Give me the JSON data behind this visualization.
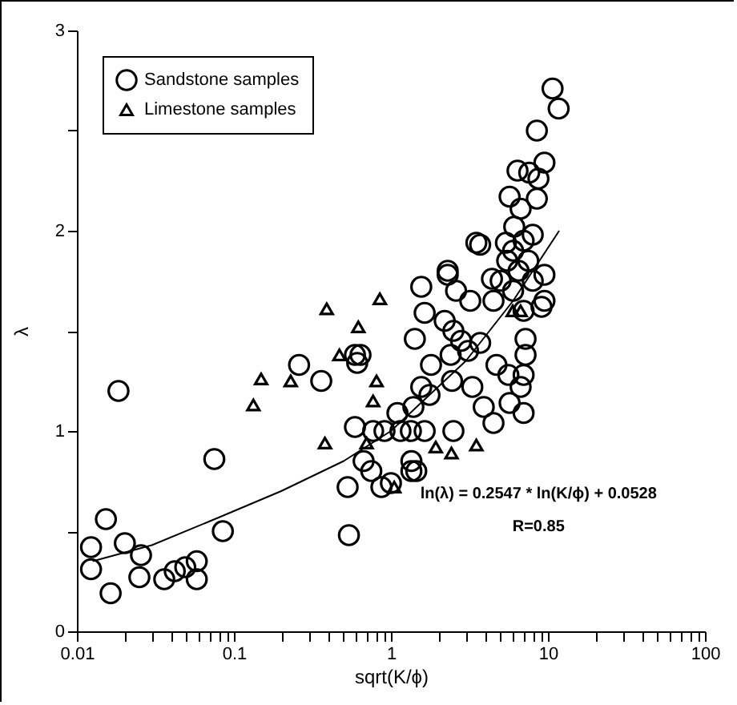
{
  "chart_data": {
    "type": "scatter",
    "xlabel": "sqrt(K/ϕ)",
    "ylabel": "λ",
    "log": "x",
    "legend": "top left",
    "grid": false,
    "xlim": [
      0.01,
      100
    ],
    "ylim": [
      0,
      3
    ],
    "xticks": [
      0.01,
      {
        "value": 0.02,
        "label": null
      },
      {
        "value": 0.03,
        "label": null
      },
      {
        "value": 0.04,
        "label": null
      },
      {
        "value": 0.05,
        "label": null
      },
      {
        "value": 0.06,
        "label": null
      },
      {
        "value": 0.07,
        "label": null
      },
      {
        "value": 0.08,
        "label": null
      },
      {
        "value": 0.09,
        "label": null
      },
      0.1,
      {
        "value": 0.2,
        "label": null
      },
      {
        "value": 0.3,
        "label": null
      },
      {
        "value": 0.4,
        "label": null
      },
      {
        "value": 0.5,
        "label": null
      },
      {
        "value": 0.6,
        "label": null
      },
      {
        "value": 0.7,
        "label": null
      },
      {
        "value": 0.8,
        "label": null
      },
      {
        "value": 0.9,
        "label": null
      },
      1,
      {
        "value": 2,
        "label": null
      },
      {
        "value": 3,
        "label": null
      },
      {
        "value": 4,
        "label": null
      },
      {
        "value": 5,
        "label": null
      },
      {
        "value": 6,
        "label": null
      },
      {
        "value": 7,
        "label": null
      },
      {
        "value": 8,
        "label": null
      },
      {
        "value": 9,
        "label": null
      },
      10,
      {
        "value": 20,
        "label": null
      },
      {
        "value": 30,
        "label": null
      },
      {
        "value": 40,
        "label": null
      },
      {
        "value": 50,
        "label": null
      },
      {
        "value": 60,
        "label": null
      },
      {
        "value": 70,
        "label": null
      },
      {
        "value": 80,
        "label": null
      },
      {
        "value": 90,
        "label": null
      },
      100
    ],
    "yticks": [
      0,
      {
        "value": 0.5,
        "label": null
      },
      1,
      {
        "value": 1.5,
        "label": null
      },
      2,
      {
        "value": 2.5,
        "label": null
      },
      3
    ],
    "annotations": [
      "ln(λ) = 0.2547 * ln(K/ϕ) + 0.0528",
      "R=0.85"
    ],
    "series": [
      {
        "name": "Sandstone samples",
        "type": "scatter",
        "marker": "circle",
        "color": "#000000",
        "x": [
          0.0123,
          0.0153,
          0.0123,
          0.0164,
          0.0202,
          0.0256,
          0.025,
          0.036,
          0.042,
          0.049,
          0.058,
          0.058,
          0.075,
          0.085,
          0.0184,
          0.26,
          0.36,
          0.59,
          0.64,
          0.61,
          1.56,
          2.3,
          1.64,
          1.42,
          0.59,
          0.77,
          0.91,
          1.15,
          1.34,
          1.64,
          1.1,
          1.39,
          1.76,
          2.5,
          0.67,
          0.75,
          0.53,
          0.87,
          1.0,
          1.35,
          1.45,
          0.54,
          10.7,
          11.7,
          8.5,
          6.4,
          7.6,
          9.5,
          8.7,
          5.7,
          6.7,
          8.5,
          3.5,
          3.7,
          6.1,
          5.4,
          6,
          7,
          8,
          5.5,
          6.5,
          5,
          7.5,
          6,
          4.5,
          8,
          7,
          9.5,
          9.5,
          9.1,
          2.3,
          2.6,
          3.2,
          4.4,
          2.2,
          2.5,
          2.8,
          3.1,
          2.4,
          3.7,
          4.7,
          5.6,
          7,
          6.7,
          7.2,
          7.2,
          1.8,
          1.56,
          2.45,
          3.3,
          3.9,
          4.5,
          7,
          5.7,
          1.35
        ],
        "values": [
          0.42,
          0.56,
          0.31,
          0.19,
          0.44,
          0.38,
          0.27,
          0.26,
          0.3,
          0.32,
          0.35,
          0.26,
          0.86,
          0.5,
          1.2,
          1.33,
          1.25,
          1.38,
          1.38,
          1.34,
          1.72,
          1.78,
          1.59,
          1.46,
          1.02,
          1.0,
          1.0,
          1.0,
          1.0,
          1.0,
          1.09,
          1.12,
          1.18,
          1.0,
          0.85,
          0.8,
          0.72,
          0.72,
          0.74,
          0.8,
          0.8,
          0.48,
          2.71,
          2.61,
          2.5,
          2.3,
          2.29,
          2.34,
          2.26,
          2.17,
          2.11,
          2.16,
          1.94,
          1.93,
          2.02,
          1.94,
          1.9,
          1.95,
          1.98,
          1.85,
          1.8,
          1.75,
          1.85,
          1.7,
          1.65,
          1.75,
          1.6,
          1.78,
          1.65,
          1.62,
          1.8,
          1.7,
          1.65,
          1.76,
          1.55,
          1.5,
          1.45,
          1.4,
          1.38,
          1.44,
          1.33,
          1.28,
          1.28,
          1.22,
          1.46,
          1.38,
          1.33,
          1.22,
          1.25,
          1.22,
          1.12,
          1.04,
          1.09,
          1.14,
          0.85
        ]
      },
      {
        "name": "Limestone samples",
        "type": "scatter",
        "marker": "triangle",
        "color": "#000000",
        "x": [
          0.39,
          0.85,
          0.62,
          0.47,
          0.149,
          0.23,
          0.133,
          0.81,
          0.77,
          0.38,
          0.7,
          1.93,
          2.43,
          3.5,
          5.97,
          6.7,
          1.05
        ],
        "values": [
          1.61,
          1.66,
          1.52,
          1.38,
          1.26,
          1.25,
          1.13,
          1.25,
          1.15,
          0.94,
          0.94,
          0.92,
          0.89,
          0.93,
          1.6,
          1.6,
          0.72
        ]
      },
      {
        "type": "line",
        "color": "#000000",
        "line_style": "solid",
        "x": [
          0.0126,
          0.03,
          0.081,
          0.2,
          0.5,
          1,
          3,
          6,
          11.8
        ],
        "values": [
          0.35,
          0.43,
          0.57,
          0.7,
          0.85,
          1.0,
          1.35,
          1.65,
          2.0
        ]
      }
    ]
  }
}
